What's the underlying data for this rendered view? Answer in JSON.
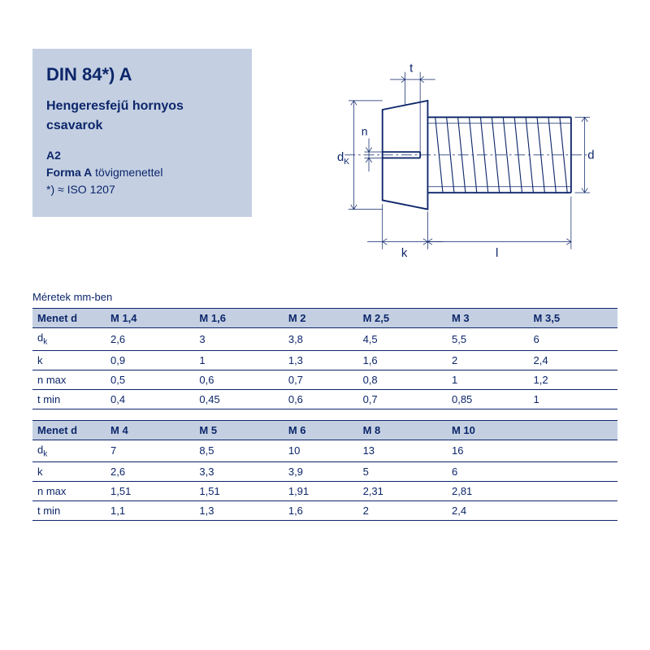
{
  "info": {
    "title": "DIN 84*) A",
    "subtitle": "Hengeresfejű hornyos csavarok",
    "material": "A2",
    "form_bold": "Forma A",
    "form_rest": " tövigmenettel",
    "note": "*) ≈ ISO 1207"
  },
  "diagram_labels": {
    "t": "t",
    "n": "n",
    "dk": "d",
    "dksub": "K",
    "k": "k",
    "l": "l",
    "d": "d"
  },
  "caption": "Méretek mm-ben",
  "table1": {
    "header": [
      "Menet d",
      "M 1,4",
      "M 1,6",
      "M 2",
      "M 2,5",
      "M 3",
      "M 3,5"
    ],
    "rows": [
      {
        "label": "d",
        "sub": "k",
        "vals": [
          "2,6",
          "3",
          "3,8",
          "4,5",
          "5,5",
          "6"
        ]
      },
      {
        "label": "k",
        "sub": "",
        "vals": [
          "0,9",
          "1",
          "1,3",
          "1,6",
          "2",
          "2,4"
        ]
      },
      {
        "label": "n max",
        "sub": "",
        "vals": [
          "0,5",
          "0,6",
          "0,7",
          "0,8",
          "1",
          "1,2"
        ]
      },
      {
        "label": "t min",
        "sub": "",
        "vals": [
          "0,4",
          "0,45",
          "0,6",
          "0,7",
          "0,85",
          "1"
        ]
      }
    ]
  },
  "table2": {
    "header": [
      "Menet d",
      "M 4",
      "M 5",
      "M 6",
      "M 8",
      "M 10",
      ""
    ],
    "rows": [
      {
        "label": "d",
        "sub": "k",
        "vals": [
          "7",
          "8,5",
          "10",
          "13",
          "16",
          ""
        ]
      },
      {
        "label": "k",
        "sub": "",
        "vals": [
          "2,6",
          "3,3",
          "3,9",
          "5",
          "6",
          ""
        ]
      },
      {
        "label": "n max",
        "sub": "",
        "vals": [
          "1,51",
          "1,51",
          "1,91",
          "2,31",
          "2,81",
          ""
        ]
      },
      {
        "label": "t min",
        "sub": "",
        "vals": [
          "1,1",
          "1,3",
          "1,6",
          "2",
          "2,4",
          ""
        ]
      }
    ]
  },
  "colors": {
    "ink": "#0d266a",
    "panel": "#c4d0e2",
    "bg": "#ffffff"
  }
}
